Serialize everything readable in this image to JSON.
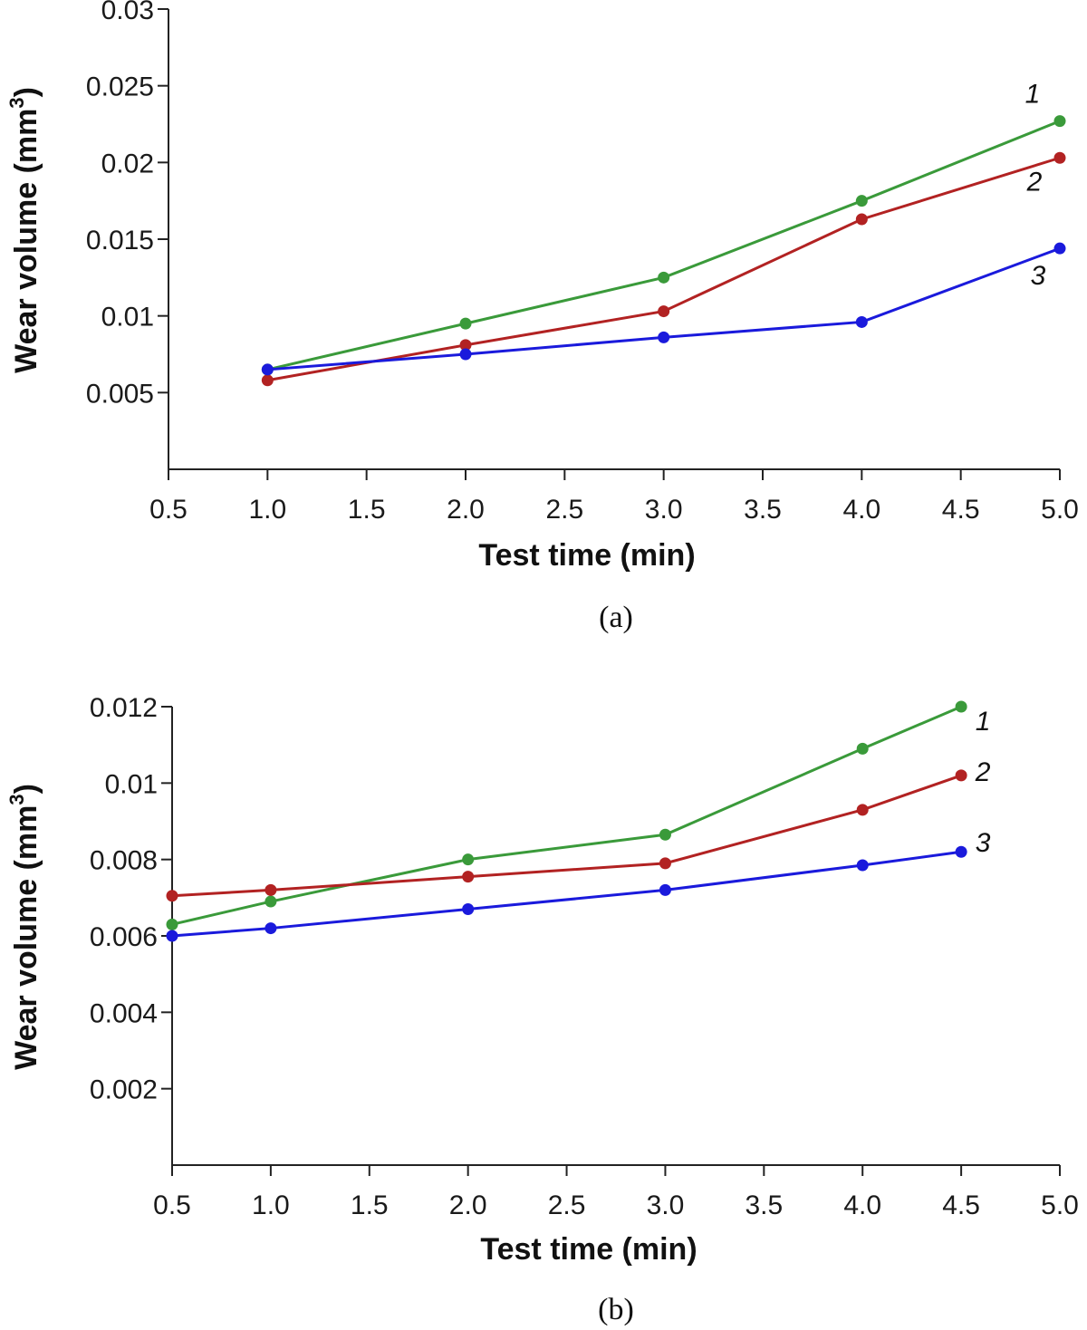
{
  "chart_data": [
    {
      "type": "line",
      "caption": "(a)",
      "xlabel": "Test time (min)",
      "ylabel": "Wear volume  (mm",
      "ylabel_sup": "3",
      "ylabel_close": ")",
      "xlim": [
        0.5,
        5.0
      ],
      "ylim": [
        0.0,
        0.03
      ],
      "x_ticks": [
        0.5,
        1.0,
        1.5,
        2.0,
        2.5,
        3.0,
        3.5,
        4.0,
        4.5,
        5.0
      ],
      "x_tick_labels": [
        "0.5",
        "1.0",
        "1.5",
        "2.0",
        "2.5",
        "3.0",
        "3.5",
        "4.0",
        "4.5",
        "5.0"
      ],
      "y_ticks": [
        0.005,
        0.01,
        0.015,
        0.02,
        0.025,
        0.03
      ],
      "y_tick_labels": [
        "0.005",
        "0.01",
        "0.015",
        "0.02",
        "0.025",
        "0.03"
      ],
      "series": [
        {
          "name": "1",
          "color": "#3a9a3a",
          "x": [
            1.0,
            2.0,
            3.0,
            4.0,
            5.0
          ],
          "values": [
            0.0065,
            0.0095,
            0.0125,
            0.0175,
            0.0227
          ]
        },
        {
          "name": "2",
          "color": "#b22222",
          "x": [
            1.0,
            2.0,
            3.0,
            4.0,
            5.0
          ],
          "values": [
            0.0058,
            0.0081,
            0.0103,
            0.0163,
            0.0203
          ]
        },
        {
          "name": "3",
          "color": "#1a1adc",
          "x": [
            1.0,
            2.0,
            3.0,
            4.0,
            5.0
          ],
          "values": [
            0.0065,
            0.0075,
            0.0086,
            0.0096,
            0.0144
          ]
        }
      ]
    },
    {
      "type": "line",
      "caption": "(b)",
      "xlabel": "Test time (min)",
      "ylabel": "Wear volume  (mm",
      "ylabel_sup": "3",
      "ylabel_close": ")",
      "xlim": [
        0.5,
        5.0
      ],
      "ylim": [
        0.0,
        0.012
      ],
      "x_ticks": [
        0.5,
        1.0,
        1.5,
        2.0,
        2.5,
        3.0,
        3.5,
        4.0,
        4.5,
        5.0
      ],
      "x_tick_labels": [
        "0.5",
        "1.0",
        "1.5",
        "2.0",
        "2.5",
        "3.0",
        "3.5",
        "4.0",
        "4.5",
        "5.0"
      ],
      "y_ticks": [
        0.002,
        0.004,
        0.006,
        0.008,
        0.01,
        0.012
      ],
      "y_tick_labels": [
        "0.002",
        "0.004",
        "0.006",
        "0.008",
        "0.01",
        "0.012"
      ],
      "series": [
        {
          "name": "1",
          "color": "#3a9a3a",
          "x": [
            0.5,
            1.0,
            2.0,
            3.0,
            4.0,
            4.5
          ],
          "values": [
            0.0063,
            0.0069,
            0.008,
            0.00865,
            0.0109,
            0.012
          ]
        },
        {
          "name": "2",
          "color": "#b22222",
          "x": [
            0.5,
            1.0,
            2.0,
            3.0,
            4.0,
            4.5
          ],
          "values": [
            0.00705,
            0.0072,
            0.00755,
            0.0079,
            0.0093,
            0.0102
          ]
        },
        {
          "name": "3",
          "color": "#1a1adc",
          "x": [
            0.5,
            1.0,
            2.0,
            3.0,
            4.0,
            4.5
          ],
          "values": [
            0.006,
            0.0062,
            0.0067,
            0.0072,
            0.00785,
            0.0082
          ]
        }
      ]
    }
  ]
}
